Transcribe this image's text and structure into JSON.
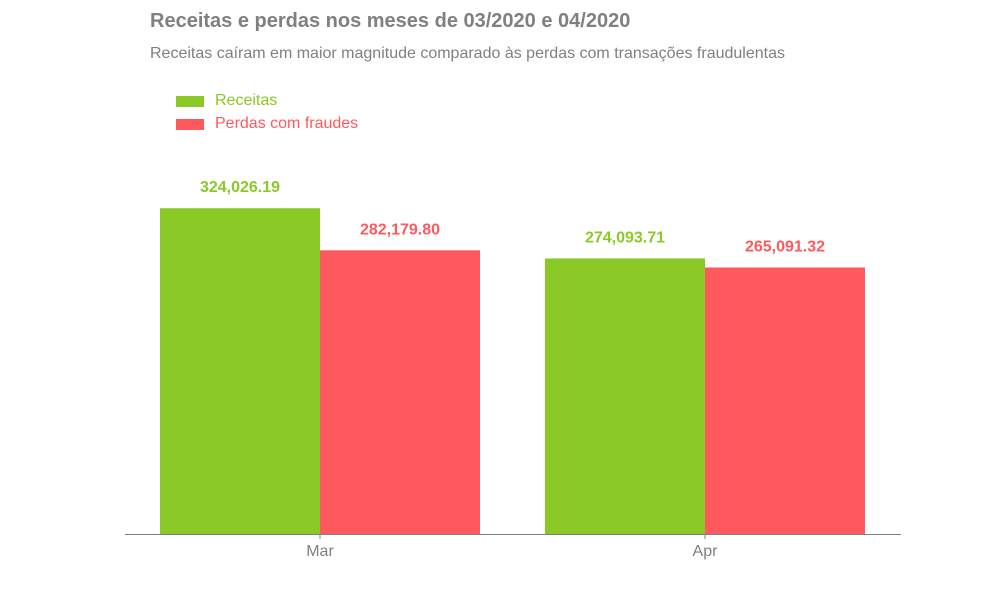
{
  "chart_data": {
    "type": "bar",
    "title": "Receitas e perdas nos meses de 03/2020 e 04/2020",
    "subtitle": "Receitas caíram em maior magnitude comparado às perdas com transações fraudulentas",
    "xlabel": "",
    "ylabel": "",
    "categories": [
      "Mar",
      "Apr"
    ],
    "series": [
      {
        "name": "Receitas",
        "color": "#8ac926",
        "values": [
          324026.19,
          274093.71
        ],
        "labels": [
          "324,026.19",
          "274,093.71"
        ]
      },
      {
        "name": "Perdas com fraudes",
        "color": "#ff595e",
        "values": [
          282179.8,
          265091.32
        ],
        "labels": [
          "282,179.80",
          "265,091.32"
        ]
      }
    ],
    "ylim": [
      0,
      370000
    ],
    "grid": false,
    "legend_position": "top-left",
    "y_axis_visible": false,
    "axis_color": "#808080"
  }
}
